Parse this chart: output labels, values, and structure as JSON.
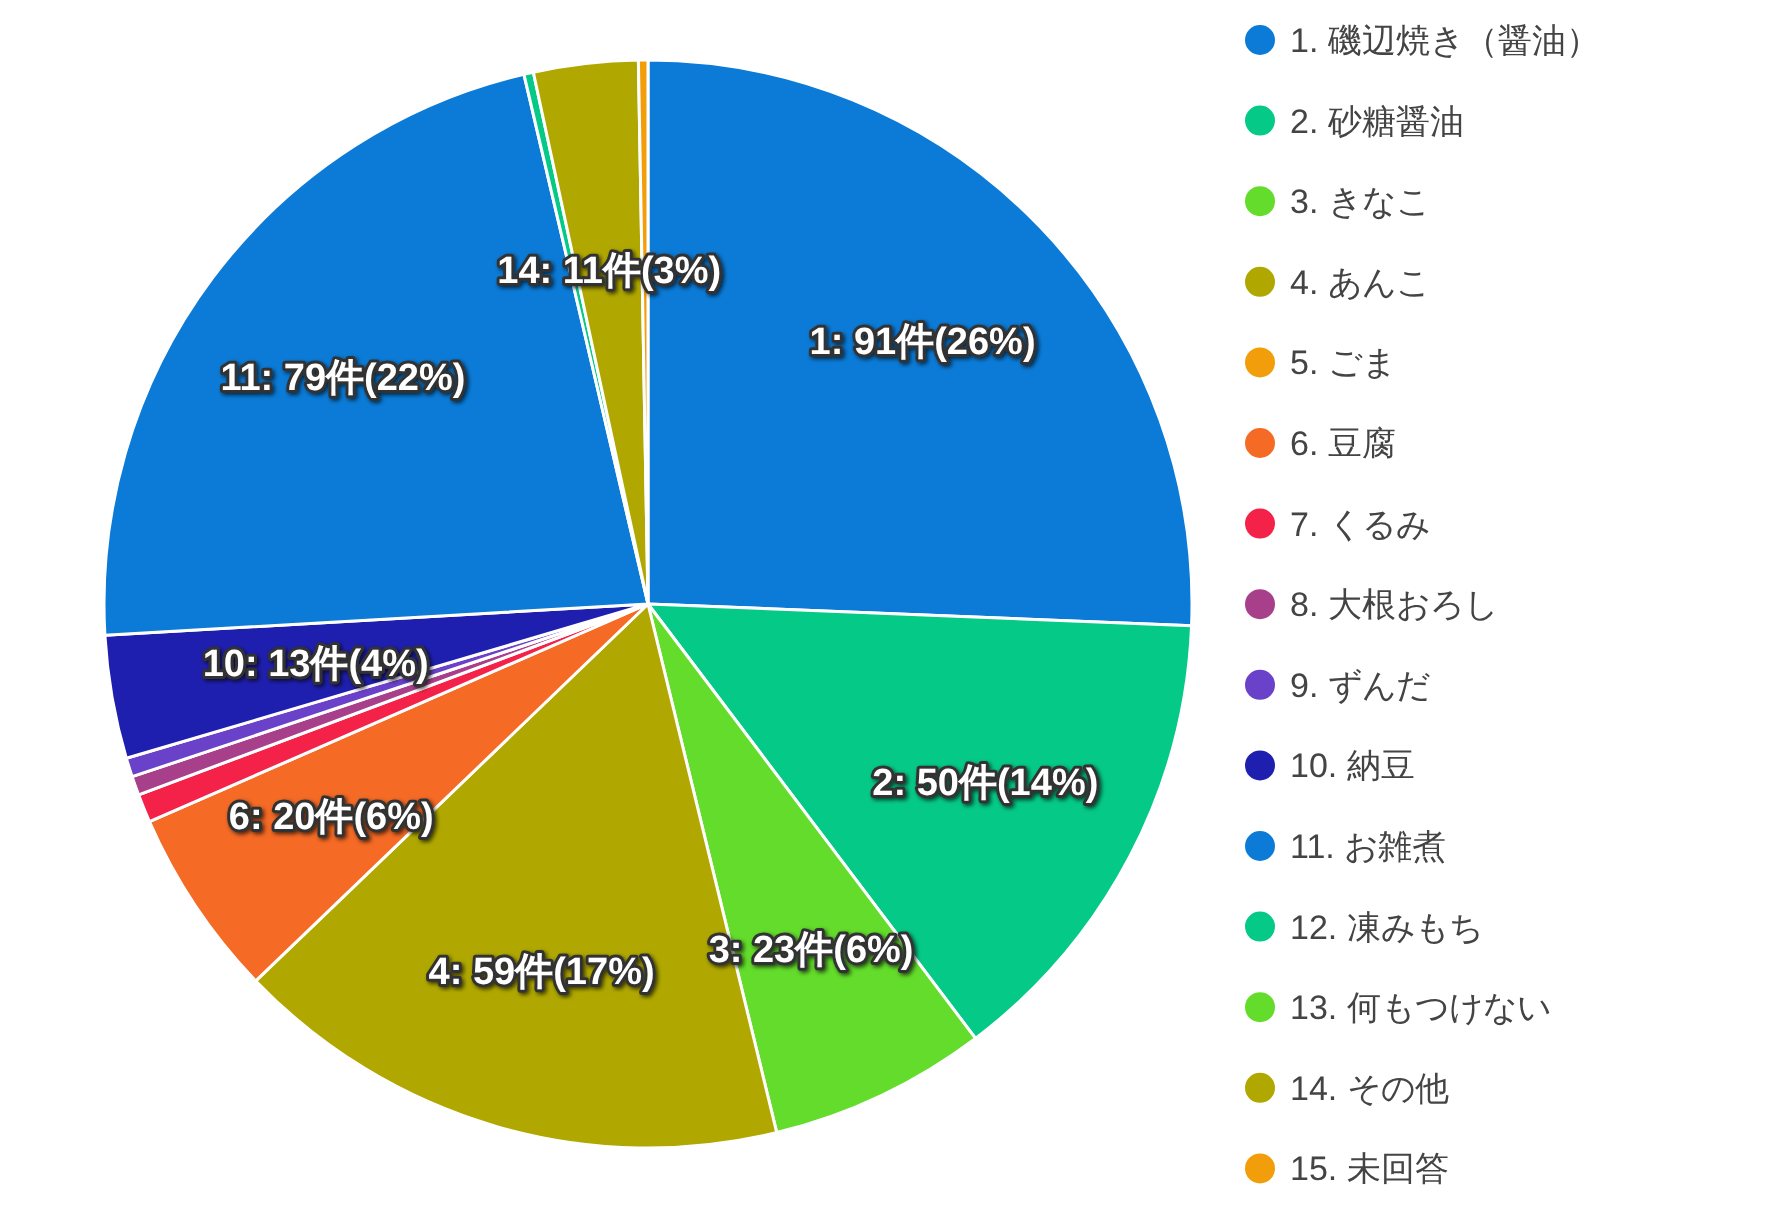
{
  "chart_data": {
    "type": "pie",
    "categories": [
      "1. 磯辺焼き（醤油）",
      "2. 砂糖醤油",
      "3. きなこ",
      "4. あんこ",
      "5. ごま",
      "6. 豆腐",
      "7. くるみ",
      "8. 大根おろし",
      "9. ずんだ",
      "10. 納豆",
      "11. お雑煮",
      "12. 凍みもち",
      "13. 何もつけない",
      "14. その他",
      "15. 未回答"
    ],
    "values": [
      91,
      50,
      23,
      59,
      0,
      20,
      3,
      2,
      2,
      13,
      79,
      1,
      0,
      11,
      1
    ],
    "colors": [
      "#0b7bd7",
      "#05c987",
      "#63dc2b",
      "#b0a800",
      "#f29e0a",
      "#f56a25",
      "#f42249",
      "#a83f8a",
      "#6a41c9",
      "#1f1faf",
      "#0b7bd7",
      "#05c987",
      "#63dc2b",
      "#b0a800",
      "#f29e0a"
    ],
    "value_labels": [
      "1: 91件(26%)",
      "2: 50件(14%)",
      "3: 23件(6%)",
      "4: 59件(17%)",
      null,
      "6: 20件(6%)",
      null,
      null,
      null,
      "10: 13件(4%)",
      "11: 79件(22%)",
      null,
      null,
      "14: 11件(3%)",
      null
    ],
    "legend": "right"
  }
}
